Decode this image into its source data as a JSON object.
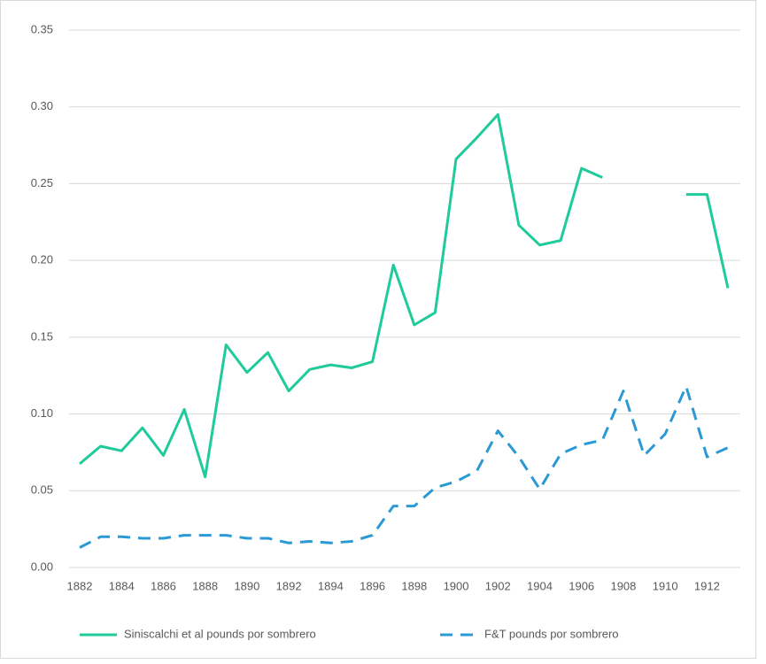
{
  "chart_data": {
    "type": "line",
    "categories": [
      "1882",
      null,
      "1884",
      null,
      "1886",
      null,
      "1888",
      null,
      "1890",
      null,
      "1892",
      null,
      "1894",
      null,
      "1896",
      null,
      "1898",
      null,
      "1900",
      null,
      "1902",
      null,
      "1904",
      null,
      "1906",
      null,
      "1908",
      null,
      "1910",
      null,
      "1912",
      null
    ],
    "series": [
      {
        "name": "Siniscalchi et al pounds por sombrero",
        "color": "#1fcb9a",
        "dash": false,
        "values": [
          0.0675,
          0.079,
          0.076,
          0.091,
          0.073,
          0.103,
          0.059,
          0.145,
          0.127,
          0.14,
          0.115,
          0.129,
          0.132,
          0.13,
          0.134,
          0.197,
          0.158,
          0.166,
          0.266,
          0.28,
          0.295,
          0.223,
          0.21,
          0.213,
          0.26,
          0.254,
          null,
          null,
          null,
          0.243,
          0.243,
          0.182
        ]
      },
      {
        "name": "F&T pounds por sombrero",
        "color": "#2b9ad4",
        "dash": true,
        "values": [
          0.013,
          0.02,
          0.02,
          0.019,
          0.019,
          0.021,
          0.021,
          0.021,
          0.019,
          0.019,
          0.016,
          0.017,
          0.016,
          0.017,
          0.021,
          0.04,
          0.04,
          0.052,
          0.056,
          0.063,
          0.089,
          0.072,
          0.051,
          0.074,
          0.08,
          0.083,
          0.115,
          0.073,
          0.087,
          0.118,
          0.072,
          0.078
        ]
      }
    ],
    "ylim": [
      0,
      0.35
    ],
    "yticks": [
      {
        "value": 0,
        "label": "0.00"
      },
      {
        "value": 0.05,
        "label": "0.05"
      },
      {
        "value": 0.1,
        "label": "0.10"
      },
      {
        "value": 0.15,
        "label": "0.15"
      },
      {
        "value": 0.2,
        "label": "0.20"
      },
      {
        "value": 0.25,
        "label": "0.25"
      },
      {
        "value": 0.3,
        "label": "0.30"
      },
      {
        "value": 0.35,
        "label": "0.35"
      }
    ],
    "grid": true,
    "legend": "bottom"
  }
}
